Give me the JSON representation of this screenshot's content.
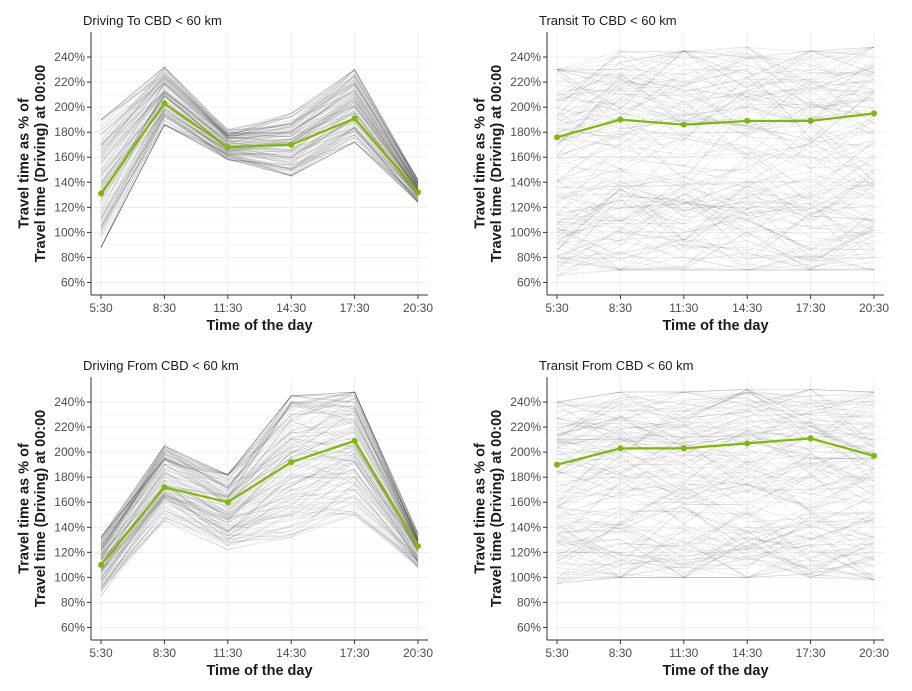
{
  "figure": {
    "y_axis_title_line1": "Travel time as % of",
    "y_axis_title_line2": "Travel time (Driving) at 00:00",
    "x_axis_title": "Time of the day"
  },
  "colors": {
    "mean_line": "#7fb800",
    "background_lines": "#000000",
    "grid": "#ebebeb",
    "axis": "#333333"
  },
  "chart_data": [
    {
      "type": "line",
      "title": "Driving To CBD < 60 km",
      "xlabel": "Time of the day",
      "ylabel": "Travel time as % of Travel time (Driving) at 00:00",
      "categories": [
        "5:30",
        "8:30",
        "11:30",
        "14:30",
        "17:30",
        "20:30"
      ],
      "y_ticks": [
        "60%",
        "80%",
        "100%",
        "120%",
        "140%",
        "160%",
        "180%",
        "200%",
        "220%",
        "240%"
      ],
      "ylim": [
        50,
        260
      ],
      "grid": true,
      "series": [
        {
          "values": [
            131,
            203,
            168,
            170,
            191,
            132
          ]
        }
      ],
      "background_band": {
        "low": [
          88,
          186,
          158,
          145,
          172,
          124
        ],
        "high": [
          190,
          232,
          182,
          195,
          230,
          142
        ]
      }
    },
    {
      "type": "line",
      "title": "Transit To CBD < 60 km",
      "xlabel": "Time of the day",
      "ylabel": "Travel time as % of Travel time (Driving) at 00:00",
      "categories": [
        "5:30",
        "8:30",
        "11:30",
        "14:30",
        "17:30",
        "20:30"
      ],
      "y_ticks": [
        "60%",
        "80%",
        "100%",
        "120%",
        "140%",
        "160%",
        "180%",
        "200%",
        "220%",
        "240%"
      ],
      "ylim": [
        50,
        260
      ],
      "grid": true,
      "series": [
        {
          "values": [
            176,
            190,
            186,
            189,
            189,
            195
          ]
        }
      ],
      "background_band": {
        "low": [
          65,
          70,
          70,
          70,
          70,
          70
        ],
        "high": [
          230,
          245,
          245,
          248,
          245,
          248
        ]
      }
    },
    {
      "type": "line",
      "title": "Driving From CBD < 60 km",
      "xlabel": "Time of the day",
      "ylabel": "Travel time as % of Travel time (Driving) at 00:00",
      "categories": [
        "5:30",
        "8:30",
        "11:30",
        "14:30",
        "17:30",
        "20:30"
      ],
      "y_ticks": [
        "60%",
        "80%",
        "100%",
        "120%",
        "140%",
        "160%",
        "180%",
        "200%",
        "220%",
        "240%"
      ],
      "ylim": [
        50,
        260
      ],
      "grid": true,
      "series": [
        {
          "values": [
            110,
            172,
            160,
            192,
            209,
            125
          ]
        }
      ],
      "background_band": {
        "low": [
          85,
          145,
          122,
          132,
          150,
          108
        ],
        "high": [
          132,
          205,
          182,
          245,
          248,
          135
        ]
      }
    },
    {
      "type": "line",
      "title": "Transit From CBD < 60 km",
      "xlabel": "Time of the day",
      "ylabel": "Travel time as % of Travel time (Driving) at 00:00",
      "categories": [
        "5:30",
        "8:30",
        "11:30",
        "14:30",
        "17:30",
        "20:30"
      ],
      "y_ticks": [
        "60%",
        "80%",
        "100%",
        "120%",
        "140%",
        "160%",
        "180%",
        "200%",
        "220%",
        "240%"
      ],
      "ylim": [
        50,
        260
      ],
      "grid": true,
      "series": [
        {
          "values": [
            190,
            203,
            203,
            207,
            211,
            197
          ]
        }
      ],
      "background_band": {
        "low": [
          95,
          100,
          100,
          100,
          100,
          98
        ],
        "high": [
          240,
          248,
          248,
          250,
          250,
          248
        ]
      }
    }
  ]
}
